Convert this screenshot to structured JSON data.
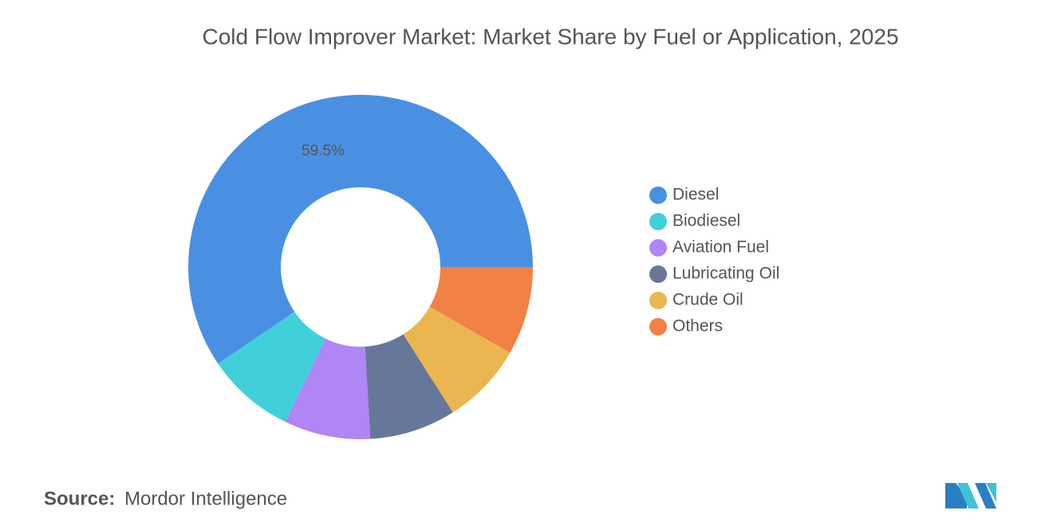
{
  "chart_data": {
    "type": "donut",
    "title": "Cold Flow Improver Market: Market Share by Fuel or Application, 2025",
    "categories": [
      "Diesel",
      "Biodiesel",
      "Aviation Fuel",
      "Lubricating Oil",
      "Crude Oil",
      "Others"
    ],
    "values": [
      59.5,
      8.3,
      8.1,
      8.1,
      7.7,
      8.3
    ],
    "value_labels": [
      "59.5%",
      null,
      null,
      null,
      null,
      null
    ],
    "colors": [
      "#4a90e2",
      "#3fd0d9",
      "#b085f5",
      "#667799",
      "#ebb550",
      "#f28145"
    ],
    "legend": "right"
  },
  "source_label": "Source:",
  "source": "Mordor Intelligence"
}
